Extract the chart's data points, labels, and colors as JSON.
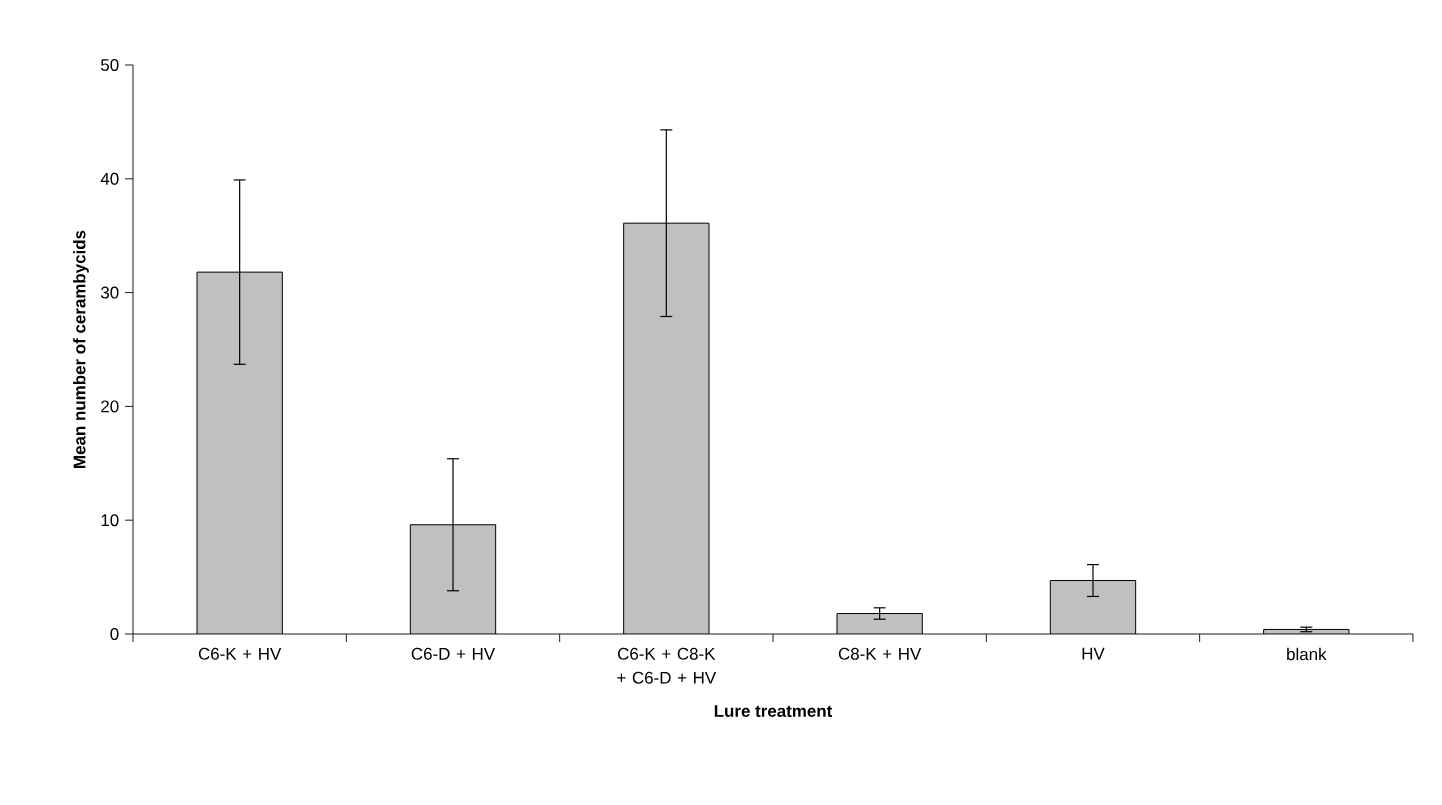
{
  "chart_data": {
    "type": "bar",
    "categories": [
      "C6-K + HV",
      "C6-D + HV",
      "C6-K + C8-K + C6-D + HV",
      "C8-K + HV",
      "HV",
      "blank"
    ],
    "values": [
      31.8,
      9.6,
      36.1,
      1.8,
      4.7,
      0.4
    ],
    "errors": [
      8.1,
      5.8,
      8.2,
      0.5,
      1.4,
      0.2
    ],
    "color": "#c0c0c0",
    "ylim": [
      0,
      50
    ],
    "yticks": [
      0,
      10,
      20,
      30,
      40,
      50
    ],
    "xlabel": "Lure treatment",
    "ylabel": "Mean number of cerambycids"
  }
}
